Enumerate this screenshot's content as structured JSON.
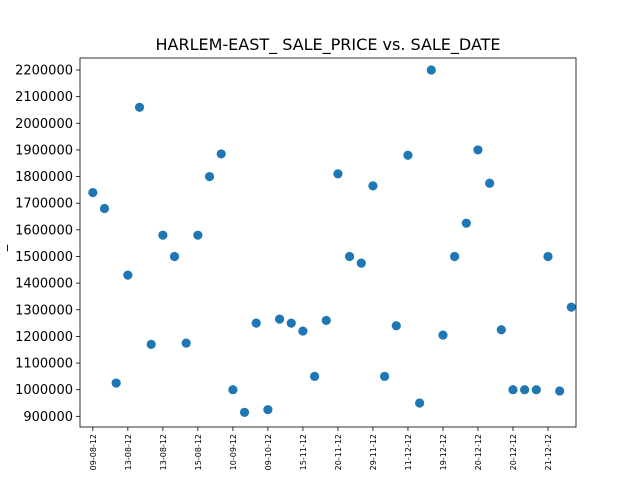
{
  "chart_data": {
    "type": "scatter",
    "title": "HARLEM-EAST_ SALE_PRICE vs. SALE_DATE",
    "xlabel": "",
    "ylabel": "_",
    "color": "#1f77b4",
    "grid": false,
    "legend": "none",
    "ylim": [
      860000,
      2245000
    ],
    "xlim": [
      -1.1,
      41.4
    ],
    "yticks": [
      900000,
      1000000,
      1100000,
      1200000,
      1300000,
      1400000,
      1500000,
      1600000,
      1700000,
      1800000,
      1900000,
      2000000,
      2100000,
      2200000
    ],
    "xticks": [
      {
        "pos": 0,
        "label": "09-08-12"
      },
      {
        "pos": 3,
        "label": "13-08-12"
      },
      {
        "pos": 6,
        "label": "13-08-12"
      },
      {
        "pos": 9,
        "label": "15-08-12"
      },
      {
        "pos": 12,
        "label": "10-09-12"
      },
      {
        "pos": 15,
        "label": "09-10-12"
      },
      {
        "pos": 18,
        "label": "15-11-12"
      },
      {
        "pos": 21,
        "label": "20-11-12"
      },
      {
        "pos": 24,
        "label": "29-11-12"
      },
      {
        "pos": 27,
        "label": "11-12-12"
      },
      {
        "pos": 30,
        "label": "19-12-12"
      },
      {
        "pos": 33,
        "label": "20-12-12"
      },
      {
        "pos": 36,
        "label": "20-12-12"
      },
      {
        "pos": 39,
        "label": "21-12-12"
      }
    ],
    "x": [
      0,
      1,
      2,
      3,
      4,
      5,
      6,
      7,
      8,
      9,
      10,
      11,
      12,
      13,
      14,
      15,
      16,
      17,
      18,
      19,
      20,
      21,
      22,
      23,
      24,
      25,
      26,
      27,
      28,
      29,
      30,
      31,
      32,
      33,
      34,
      35,
      36,
      37,
      38,
      39,
      40,
      41
    ],
    "values": [
      1740000,
      1680000,
      1025000,
      1430000,
      2060000,
      1170000,
      1580000,
      1500000,
      1175000,
      1580000,
      1800000,
      1885000,
      1000000,
      915000,
      1250000,
      925000,
      1265000,
      1250000,
      1220000,
      1050000,
      1260000,
      1810000,
      1500000,
      1475000,
      1765000,
      1050000,
      1240000,
      1880000,
      950000,
      2200000,
      1205000,
      1500000,
      1625000,
      1900000,
      1775000,
      1225000,
      1000000,
      1000000,
      1000000,
      1500000,
      995000,
      1310000
    ]
  }
}
